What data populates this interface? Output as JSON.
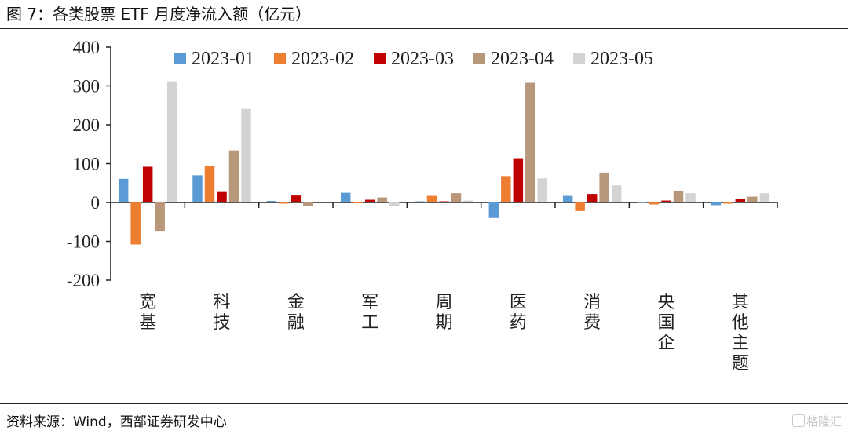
{
  "header": {
    "title": "图 7：各类股票 ETF 月度净流入额（亿元）"
  },
  "footer": {
    "source": "资料来源：Wind，西部证券研发中心",
    "watermark": "格隆汇"
  },
  "chart_data": {
    "type": "bar",
    "title": "",
    "xlabel": "",
    "ylabel": "",
    "ylim": [
      -200,
      400
    ],
    "yticks": [
      -200,
      -100,
      0,
      100,
      200,
      300,
      400
    ],
    "grid": false,
    "legend": "top",
    "categories": [
      "宽基",
      "科技",
      "金融",
      "军工",
      "周期",
      "医药",
      "消费",
      "央国企",
      "其他主题"
    ],
    "series": [
      {
        "name": "2023-01",
        "color": "#5b9bd5",
        "values": [
          61,
          70,
          4,
          25,
          3,
          -40,
          17,
          0,
          -7
        ]
      },
      {
        "name": "2023-02",
        "color": "#ed7d31",
        "values": [
          -108,
          95,
          -3,
          -2,
          17,
          68,
          -22,
          -5,
          -3
        ]
      },
      {
        "name": "2023-03",
        "color": "#c00000",
        "values": [
          92,
          27,
          18,
          7,
          3,
          114,
          22,
          5,
          9
        ]
      },
      {
        "name": "2023-04",
        "color": "#b9977a",
        "values": [
          -73,
          134,
          -8,
          13,
          24,
          308,
          77,
          29,
          15
        ]
      },
      {
        "name": "2023-05",
        "color": "#d3d3d3",
        "values": [
          312,
          241,
          2,
          -9,
          5,
          62,
          44,
          24,
          24
        ]
      }
    ]
  }
}
